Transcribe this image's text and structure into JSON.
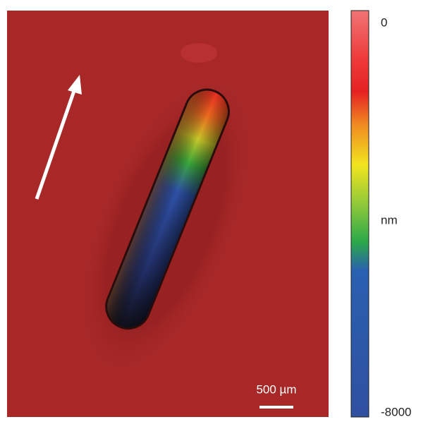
{
  "image": {
    "scale_bar": "500 µm"
  },
  "colorbar": {
    "label": "nm",
    "lim": [
      -8000,
      0
    ],
    "ticks": [
      0,
      -8000
    ]
  }
}
